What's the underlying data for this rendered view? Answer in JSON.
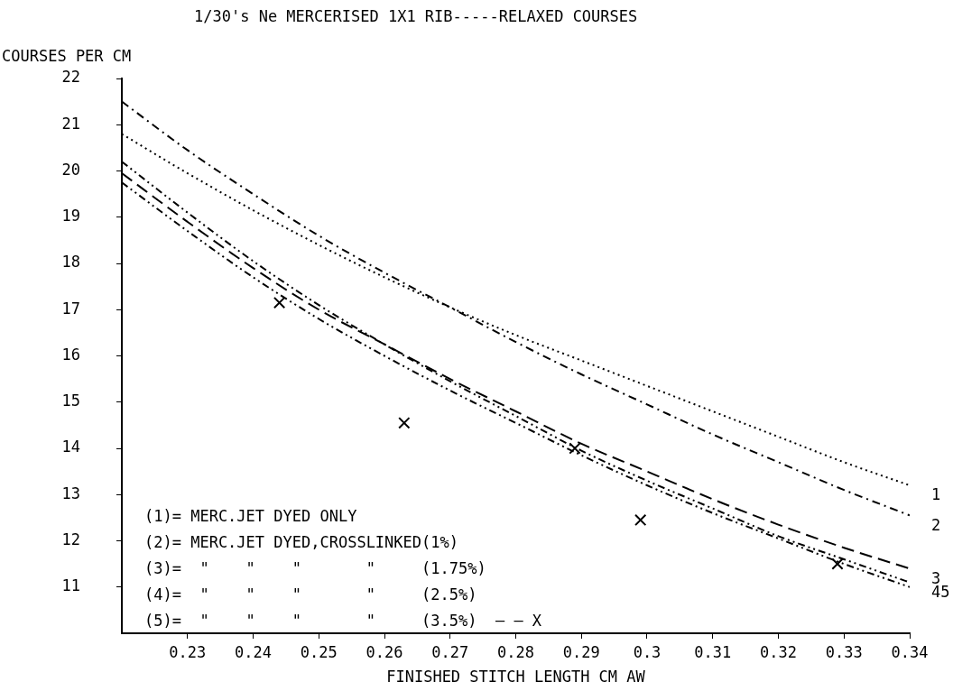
{
  "chart_data": {
    "type": "line",
    "title": "1/30's Ne MERCERISED 1X1 RIB-----RELAXED COURSES",
    "xlabel": "FINISHED STITCH LENGTH CM AW",
    "ylabel": "COURSES PER CM",
    "x": [
      0.22,
      0.23,
      0.24,
      0.25,
      0.26,
      0.27,
      0.28,
      0.29,
      0.3,
      0.31,
      0.32,
      0.33,
      0.34
    ],
    "series": [
      {
        "name": "1",
        "color": "#000000",
        "line_style": "dotted",
        "values": [
          20.8,
          19.95,
          19.15,
          18.4,
          17.7,
          17.05,
          16.45,
          15.9,
          15.35,
          14.8,
          14.25,
          13.7,
          13.2
        ]
      },
      {
        "name": "2",
        "color": "#000000",
        "line_style": "dashdot",
        "values": [
          21.5,
          20.45,
          19.5,
          18.6,
          17.8,
          17.05,
          16.3,
          15.6,
          14.95,
          14.3,
          13.7,
          13.1,
          12.55
        ]
      },
      {
        "name": "3",
        "color": "#000000",
        "line_style": "dashed",
        "values": [
          19.95,
          18.9,
          17.9,
          17.0,
          16.25,
          15.5,
          14.8,
          14.1,
          13.5,
          12.9,
          12.35,
          11.85,
          11.4
        ]
      },
      {
        "name": "4",
        "color": "#000000",
        "line_style": "dashdotdot",
        "values": [
          20.2,
          19.1,
          18.05,
          17.1,
          16.25,
          15.45,
          14.7,
          13.95,
          13.3,
          12.7,
          12.1,
          11.6,
          11.1
        ]
      },
      {
        "name": "5",
        "color": "#000000",
        "line_style": "dashdotdot",
        "values": [
          19.75,
          18.7,
          17.7,
          16.8,
          16.0,
          15.25,
          14.55,
          13.85,
          13.2,
          12.6,
          12.05,
          11.5,
          11.0
        ]
      },
      {
        "type": "scatter",
        "color": "#000000",
        "marker": "cross",
        "x": [
          0.244,
          0.263,
          0.289,
          0.299,
          0.329
        ],
        "values": [
          17.15,
          14.55,
          14.0,
          12.45,
          11.5
        ]
      }
    ],
    "xlim": [
      0.22,
      0.34
    ],
    "xticks": [
      0.23,
      0.24,
      0.25,
      0.26,
      0.27,
      0.28,
      0.29,
      0.3,
      0.31,
      0.32,
      0.33,
      0.34
    ],
    "ylim": [
      10,
      22
    ],
    "yticks": [
      11,
      12,
      13,
      14,
      15,
      16,
      17,
      18,
      19,
      20,
      21,
      22
    ],
    "grid": false,
    "legend": false,
    "marker": "none",
    "annotations": [
      "(1)= MERC.JET DYED ONLY",
      "(2)= MERC.JET DYED,CROSSLINKED(1%)",
      "(3)=  \"    \"    \"       \"     (1.75%)",
      "(4)=  \"    \"    \"       \"     (2.5%)",
      "(5)=  \"    \"    \"       \"     (3.5%)  — — X"
    ]
  }
}
